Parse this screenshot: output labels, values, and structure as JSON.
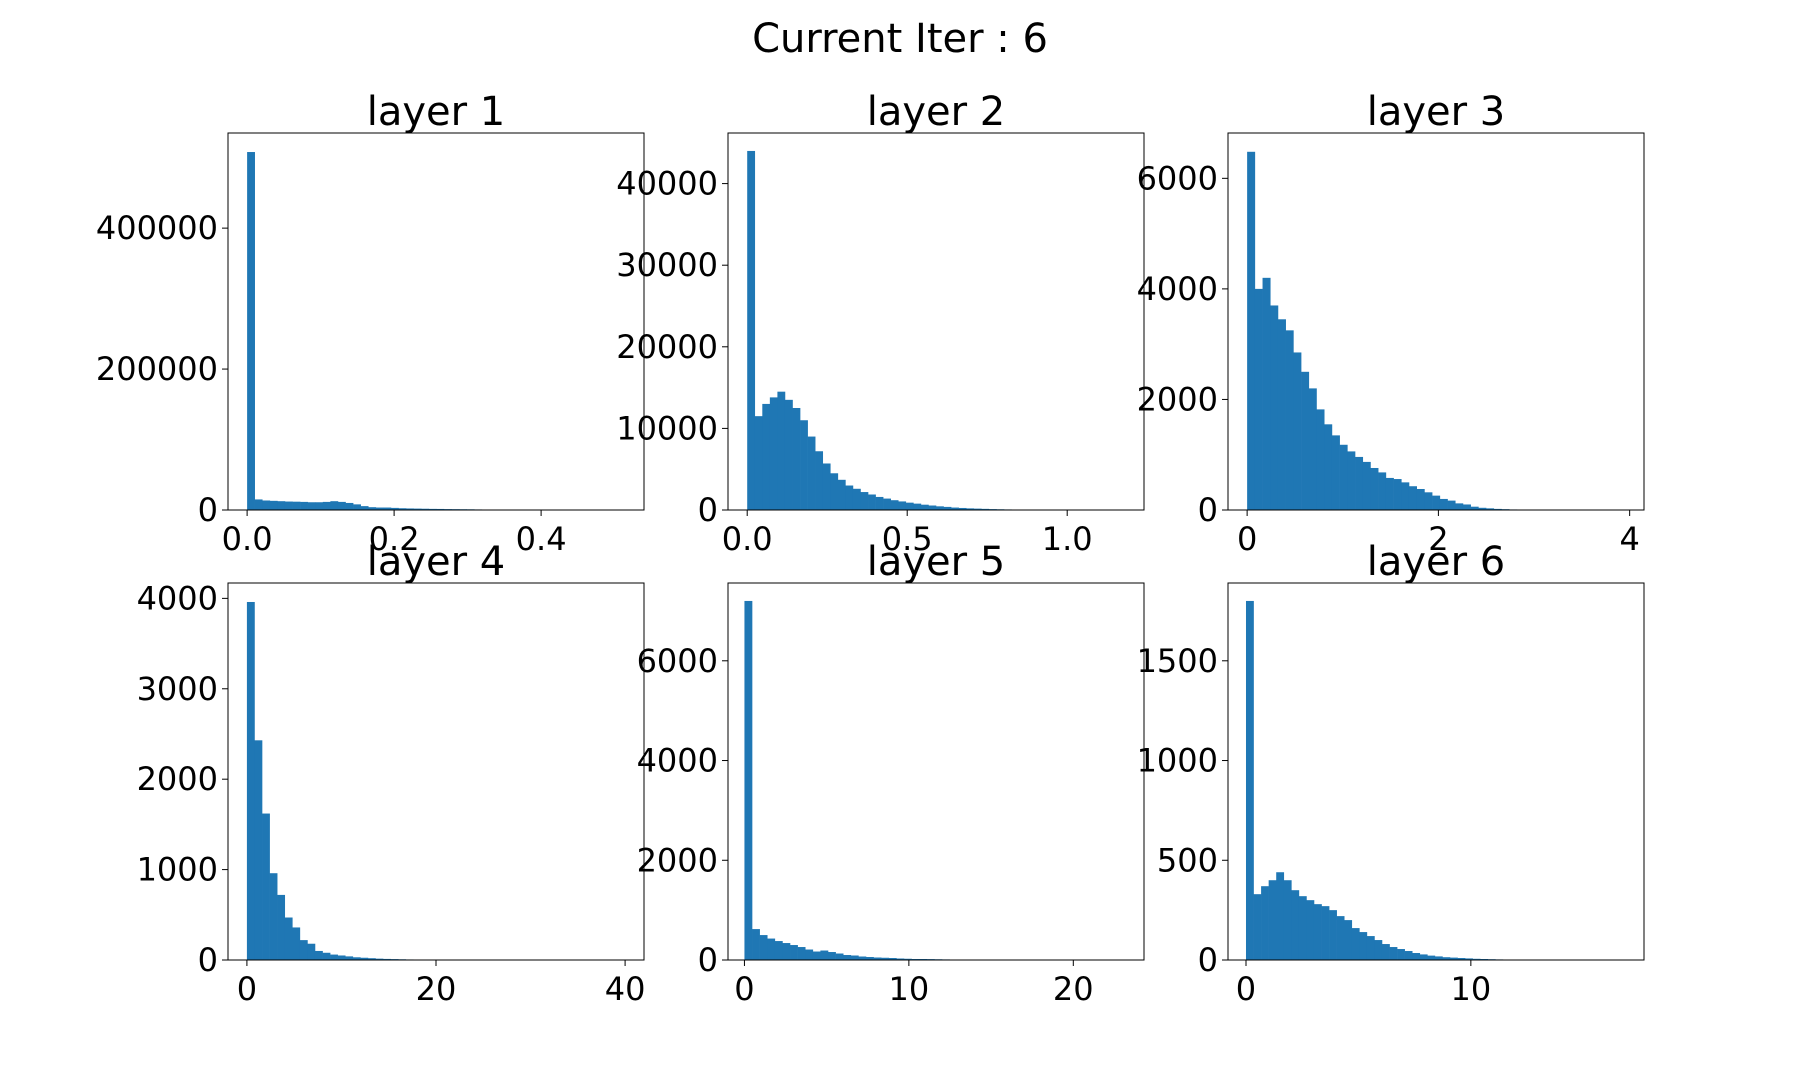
{
  "figure": {
    "suptitle": "Current Iter : 6",
    "bar_color": "#1f77b4"
  },
  "chart_data": [
    {
      "type": "bar",
      "title": "layer 1",
      "xlim": [
        -0.026,
        0.54
      ],
      "ylim": [
        0,
        535000
      ],
      "xticks": [
        0.0,
        0.2,
        0.4
      ],
      "xtick_labels": [
        "0.0",
        "0.2",
        "0.4"
      ],
      "yticks": [
        0,
        200000,
        400000
      ],
      "ytick_labels": [
        "0",
        "200000",
        "400000"
      ],
      "bins": {
        "start": 0.0,
        "width": 0.0103
      },
      "values": [
        508000,
        15000,
        13500,
        13000,
        12500,
        12000,
        11800,
        11500,
        11000,
        11000,
        11500,
        12500,
        11500,
        10000,
        8000,
        5500,
        4000,
        3500,
        3500,
        3000,
        2500,
        2200,
        2000,
        1800,
        1600,
        1500,
        1300,
        1200,
        1100,
        1000,
        800,
        600,
        400,
        300,
        200,
        100,
        80,
        50,
        30,
        20,
        10,
        8,
        5,
        5,
        3,
        2,
        1,
        1,
        1,
        1
      ]
    },
    {
      "type": "bar",
      "title": "layer 2",
      "xlim": [
        -0.06,
        1.24
      ],
      "ylim": [
        0,
        46200
      ],
      "xticks": [
        0.0,
        0.5,
        1.0
      ],
      "xtick_labels": [
        "0.0",
        "0.5",
        "1.0"
      ],
      "yticks": [
        0,
        10000,
        20000,
        30000,
        40000
      ],
      "ytick_labels": [
        "0",
        "10000",
        "20000",
        "30000",
        "40000"
      ],
      "bins": {
        "start": 0.0,
        "width": 0.0236
      },
      "values": [
        44000,
        11500,
        13000,
        13800,
        14500,
        13500,
        12500,
        11000,
        9000,
        7200,
        5700,
        4500,
        3700,
        3000,
        2600,
        2200,
        1900,
        1600,
        1400,
        1200,
        1050,
        900,
        780,
        650,
        550,
        450,
        380,
        300,
        250,
        200,
        170,
        140,
        110,
        90,
        70,
        55,
        40,
        30,
        25,
        20,
        15,
        10,
        8,
        5,
        4,
        3,
        2,
        1,
        1,
        1
      ]
    },
    {
      "type": "bar",
      "title": "layer 3",
      "xlim": [
        -0.2,
        4.15
      ],
      "ylim": [
        0,
        6820
      ],
      "xticks": [
        0,
        2,
        4
      ],
      "xtick_labels": [
        "0",
        "2",
        "4"
      ],
      "yticks": [
        0,
        2000,
        4000,
        6000
      ],
      "ytick_labels": [
        "0",
        "2000",
        "4000",
        "6000"
      ],
      "bins": {
        "start": 0.0,
        "width": 0.0806
      },
      "values": [
        6480,
        4000,
        4200,
        3700,
        3450,
        3250,
        2850,
        2500,
        2200,
        1820,
        1550,
        1350,
        1180,
        1060,
        960,
        870,
        760,
        680,
        580,
        560,
        500,
        430,
        380,
        320,
        260,
        200,
        170,
        120,
        100,
        60,
        40,
        30,
        20,
        15,
        10,
        8,
        6,
        5,
        4,
        3,
        3,
        2,
        2,
        1,
        1,
        1,
        1,
        0,
        0,
        1
      ]
    },
    {
      "type": "bar",
      "title": "layer 4",
      "xlim": [
        -2,
        42
      ],
      "ylim": [
        0,
        4170
      ],
      "xticks": [
        0,
        20,
        40
      ],
      "xtick_labels": [
        "0",
        "20",
        "40"
      ],
      "yticks": [
        0,
        1000,
        2000,
        3000,
        4000
      ],
      "ytick_labels": [
        "0",
        "1000",
        "2000",
        "3000",
        "4000"
      ],
      "bins": {
        "start": 0.0,
        "width": 0.8
      },
      "values": [
        3960,
        2430,
        1620,
        960,
        720,
        470,
        360,
        220,
        180,
        100,
        80,
        60,
        50,
        40,
        30,
        25,
        20,
        15,
        12,
        10,
        8,
        6,
        5,
        4,
        3,
        3,
        2,
        2,
        1,
        1,
        1,
        1,
        1,
        1,
        1,
        0,
        0,
        0,
        1,
        0,
        0,
        0,
        0,
        0,
        0,
        0,
        0,
        0,
        0,
        1
      ]
    },
    {
      "type": "bar",
      "title": "layer 5",
      "xlim": [
        -1,
        24.3
      ],
      "ylim": [
        0,
        7560
      ],
      "xticks": [
        0,
        10,
        20
      ],
      "xtick_labels": [
        "0",
        "10",
        "20"
      ],
      "yticks": [
        0,
        2000,
        4000,
        6000
      ],
      "ytick_labels": [
        "0",
        "2000",
        "4000",
        "6000"
      ],
      "bins": {
        "start": 0.0,
        "width": 0.462
      },
      "values": [
        7200,
        620,
        500,
        430,
        380,
        340,
        300,
        260,
        210,
        170,
        190,
        160,
        130,
        100,
        90,
        70,
        60,
        50,
        45,
        40,
        30,
        25,
        20,
        20,
        18,
        15,
        12,
        10,
        10,
        8,
        6,
        5,
        5,
        4,
        3,
        3,
        2,
        2,
        1,
        1,
        1,
        1,
        1,
        0,
        0,
        0,
        0,
        0,
        0,
        1
      ]
    },
    {
      "type": "bar",
      "title": "layer 6",
      "xlim": [
        -0.8,
        17.7
      ],
      "ylim": [
        0,
        1890
      ],
      "xticks": [
        0,
        10
      ],
      "xtick_labels": [
        "0",
        "10"
      ],
      "yticks": [
        0,
        500,
        1000,
        1500
      ],
      "ytick_labels": [
        "0",
        "500",
        "1000",
        "1500"
      ],
      "bins": {
        "start": 0.0,
        "width": 0.336
      },
      "values": [
        1800,
        330,
        370,
        400,
        440,
        400,
        350,
        320,
        300,
        280,
        270,
        250,
        220,
        200,
        160,
        140,
        120,
        100,
        80,
        65,
        55,
        45,
        35,
        28,
        22,
        18,
        14,
        12,
        10,
        8,
        6,
        5,
        4,
        3,
        2,
        2,
        1,
        1,
        1,
        1,
        1,
        0,
        0,
        0,
        0,
        0,
        0,
        0,
        0,
        1
      ]
    }
  ]
}
